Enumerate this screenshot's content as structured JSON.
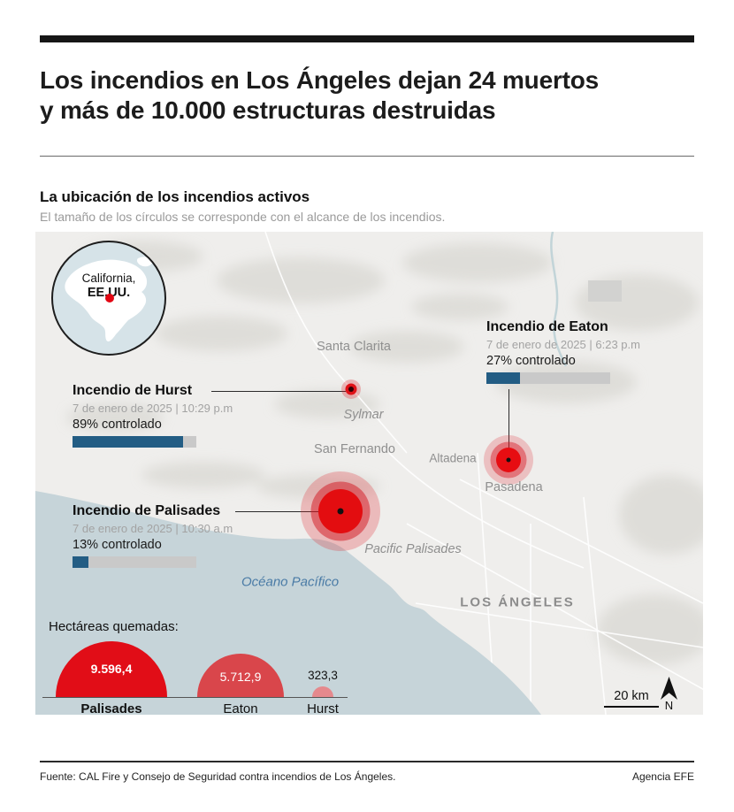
{
  "header": {
    "title_line1": "Los incendios en Los Ángeles dejan 24 muertos",
    "title_line2": "y más de 10.000 estructuras destruidas"
  },
  "section": {
    "heading": "La ubicación de los incendios activos",
    "subtitle": "El tamaño de los círculos se corresponde con el alcance de los incendios."
  },
  "map": {
    "inset": {
      "line1": "California,",
      "line2": "EE.UU."
    },
    "places": {
      "santa_clarita": "Santa Clarita",
      "sylmar": "Sylmar",
      "san_fernando": "San Fernando",
      "altadena": "Altadena",
      "pasadena": "Pasadena",
      "pacific_palisades": "Pacific Palisades",
      "ocean": "Océano Pacífico",
      "city": "LOS ÁNGELES"
    },
    "scale_label": "20 km",
    "north_label": "N"
  },
  "fires": [
    {
      "name": "Incendio de Eaton",
      "date": "7 de enero de 2025 | 6:23 p.m",
      "contained_label": "27% controlado",
      "contained_pct": 27
    },
    {
      "name": "Incendio de Hurst",
      "date": "7 de enero de 2025 | 10:29 p.m",
      "contained_label": "89% controlado",
      "contained_pct": 89
    },
    {
      "name": "Incendio de Palisades",
      "date": "7 de enero de 2025 | 10:30 a.m",
      "contained_label": "13% controlado",
      "contained_pct": 13
    }
  ],
  "chart_data": {
    "type": "bar",
    "variant": "proportional-semicircles",
    "title": "Hectáreas quemadas:",
    "categories": [
      "Palisades",
      "Eaton",
      "Hurst"
    ],
    "values": [
      9596.4,
      5712.9,
      323.3
    ],
    "value_labels": [
      "9.596,4",
      "5.712,9",
      "323,3"
    ],
    "colors": [
      "#e10d17",
      "#d9464b",
      "#e5898d"
    ],
    "max_radius_px": 63,
    "baseline": true,
    "legend_position": "none"
  },
  "footer": {
    "source": "Fuente: CAL Fire y Consejo de Seguridad contra incendios de Los Ángeles.",
    "credit": "Agencia EFE"
  },
  "colors": {
    "accent_blue": "#235d84",
    "fire_red": "#e10d17",
    "ocean": "#c6d4d9",
    "land": "#efeeec",
    "bar_track": "#c9c9c9"
  }
}
